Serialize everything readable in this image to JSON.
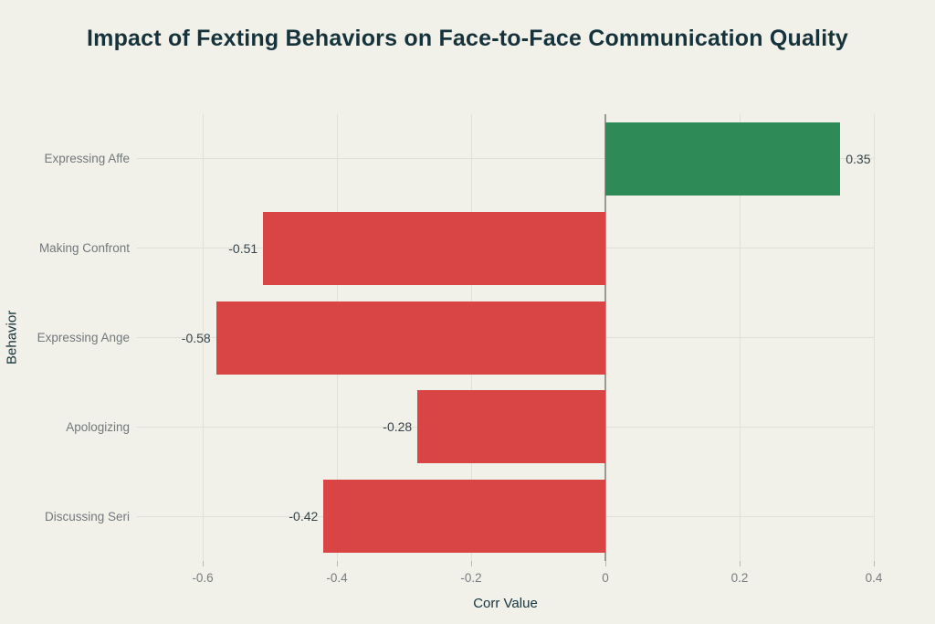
{
  "page": {
    "background": "#f1f1ea"
  },
  "chart_data": {
    "type": "bar",
    "orientation": "horizontal",
    "title": "Impact of Fexting Behaviors on Face-to-Face Communication Quality",
    "xlabel": "Corr Value",
    "ylabel": "Behavior",
    "categories": [
      "Expressing Affe",
      "Making Confront",
      "Expressing Ange",
      "Apologizing",
      "Discussing Seri"
    ],
    "values": [
      0.35,
      -0.51,
      -0.58,
      -0.28,
      -0.42
    ],
    "value_labels": [
      "0.35",
      "-0.51",
      "-0.58",
      "-0.28",
      "-0.42"
    ],
    "xlim": [
      -0.698,
      0.4
    ],
    "xticks": [
      -0.6,
      -0.4,
      -0.2,
      0,
      0.2,
      0.4
    ],
    "xtick_labels": [
      "-0.6",
      "-0.4",
      "-0.2",
      "0",
      "0.2",
      "0.4"
    ],
    "grid": true,
    "legend": false,
    "colors": {
      "positive": "#2e8b57",
      "negative": "#d94545",
      "title": "#16333c",
      "category_label": "#73787c",
      "value_label": "#36444a",
      "gridline": "#e0e0d9",
      "zero_line": "#9a9a93",
      "background": "#f1f1ea"
    }
  }
}
